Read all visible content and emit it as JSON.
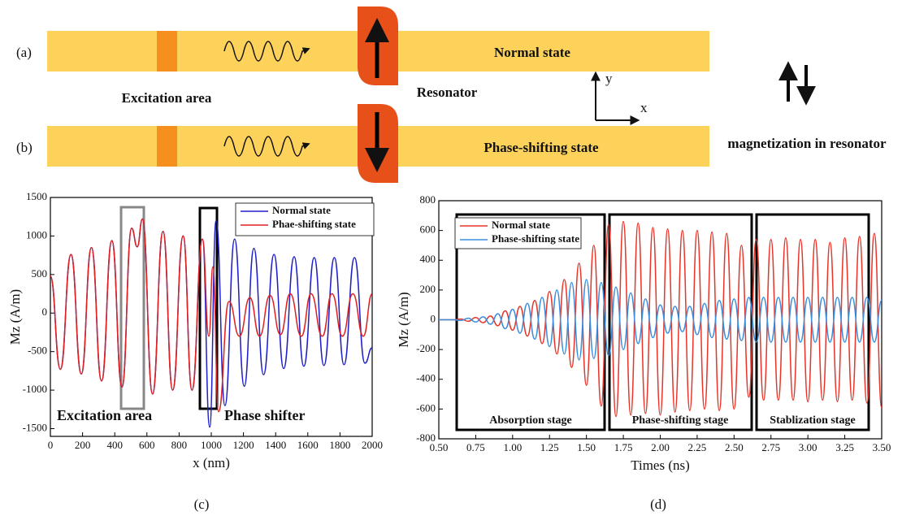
{
  "diagram": {
    "label_a": "(a)",
    "label_b": "(b)",
    "normal": "Normal state",
    "phase": "Phase-shifting state",
    "excitation": "Excitation area",
    "resonator": "Resonator",
    "axis_y": "y",
    "axis_x": "x",
    "magnetization": "magnetization in resonator"
  },
  "captions": [
    "(c)",
    "(d)"
  ],
  "chart_data": [
    {
      "type": "line",
      "x_label": "x (nm)",
      "y_label": "Mz (A/m)",
      "xlim": [
        0,
        2000
      ],
      "xticks": [
        0,
        200,
        400,
        600,
        800,
        1000,
        1200,
        1400,
        1600,
        1800,
        2000
      ],
      "ylim": [
        -1600,
        1500
      ],
      "yticks": [
        -1500,
        -1000,
        -500,
        0,
        500,
        1000,
        1500
      ],
      "legend": "upper right",
      "annotations": [
        "Excitation area",
        "Phase shifter"
      ],
      "series": [
        {
          "name": "Normal state",
          "color": "#1f1fc8",
          "x": [
            0,
            62,
            128,
            192,
            255,
            318,
            382,
            445,
            505,
            540,
            572,
            635,
            700,
            760,
            825,
            880,
            945,
            990,
            1030,
            1085,
            1145,
            1205,
            1265,
            1325,
            1390,
            1450,
            1515,
            1575,
            1640,
            1700,
            1765,
            1825,
            1890,
            1955,
            2000
          ],
          "values": [
            480,
            -730,
            760,
            -790,
            850,
            -880,
            940,
            -960,
            1100,
            860,
            1220,
            -1050,
            1060,
            -1000,
            1000,
            -1000,
            960,
            -1480,
            1200,
            -1200,
            960,
            -950,
            840,
            -800,
            760,
            -720,
            730,
            -690,
            720,
            -680,
            720,
            -670,
            720,
            -650,
            -450
          ]
        },
        {
          "name": "Phae-shifting state",
          "color": "#e02020",
          "x": [
            0,
            62,
            128,
            192,
            255,
            318,
            382,
            445,
            505,
            540,
            572,
            635,
            700,
            760,
            825,
            880,
            945,
            985,
            1010,
            1045,
            1110,
            1175,
            1240,
            1300,
            1365,
            1430,
            1490,
            1560,
            1620,
            1690,
            1750,
            1815,
            1880,
            1945,
            2000
          ],
          "values": [
            480,
            -730,
            760,
            -790,
            850,
            -880,
            940,
            -960,
            1100,
            860,
            1220,
            -1050,
            1060,
            -1000,
            1000,
            -1000,
            960,
            -300,
            600,
            -1280,
            150,
            -300,
            200,
            -300,
            230,
            -280,
            250,
            -300,
            250,
            -300,
            250,
            -300,
            250,
            -300,
            250
          ]
        }
      ]
    },
    {
      "type": "line",
      "x_label": "Times (ns)",
      "y_label": "Mz (A/m)",
      "xlim": [
        0.5,
        3.5
      ],
      "xticks": [
        {
          "value": 0.5,
          "label": "0.50"
        },
        0.75,
        {
          "value": 1,
          "label": "1.00"
        },
        1.25,
        {
          "value": 1.5,
          "label": "1.50"
        },
        1.75,
        {
          "value": 2,
          "label": "2.00"
        },
        2.25,
        {
          "value": 2.5,
          "label": "2.50"
        },
        2.75,
        {
          "value": 3,
          "label": "3.00"
        },
        3.25,
        {
          "value": 3.5,
          "label": "3.50"
        }
      ],
      "ylim": [
        -800,
        800
      ],
      "yticks": [
        -800,
        -600,
        -400,
        -200,
        0,
        200,
        400,
        600,
        800
      ],
      "legend": "upper left",
      "annotations": [
        "Absorption stage",
        "Phase-shifting stage",
        "Stablization stage"
      ],
      "x": [
        0.5,
        0.55,
        0.6,
        0.65,
        0.7,
        0.75,
        0.8,
        0.85,
        0.9,
        0.95,
        1.0,
        1.05,
        1.1,
        1.15,
        1.2,
        1.25,
        1.3,
        1.35,
        1.4,
        1.45,
        1.5,
        1.55,
        1.6,
        1.65,
        1.7,
        1.75,
        1.8,
        1.85,
        1.9,
        1.95,
        2.0,
        2.05,
        2.1,
        2.15,
        2.2,
        2.25,
        2.3,
        2.35,
        2.4,
        2.45,
        2.5,
        2.55,
        2.6,
        2.65,
        2.7,
        2.75,
        2.8,
        2.85,
        2.9,
        2.95,
        3.0,
        3.05,
        3.1,
        3.15,
        3.2,
        3.25,
        3.3,
        3.35,
        3.4,
        3.45,
        3.5
      ],
      "series": [
        {
          "name": "Normal state",
          "color": "#e8352a",
          "values": [
            0,
            0,
            0,
            5,
            -10,
            15,
            -20,
            25,
            -40,
            60,
            -70,
            90,
            -110,
            130,
            -160,
            190,
            -230,
            270,
            -320,
            380,
            -440,
            500,
            -580,
            640,
            -650,
            660,
            -640,
            650,
            -630,
            620,
            -640,
            610,
            -620,
            600,
            -610,
            600,
            -600,
            590,
            -610,
            580,
            -600,
            500,
            -520,
            540,
            -540,
            540,
            -540,
            550,
            -540,
            540,
            -550,
            540,
            -540,
            520,
            -550,
            550,
            -540,
            560,
            -560,
            580,
            -590
          ]
        },
        {
          "name": "Phase-shifting state",
          "color": "#3a8ee0",
          "values": [
            0,
            0,
            0,
            -5,
            10,
            -15,
            20,
            -30,
            40,
            -60,
            70,
            -90,
            110,
            -130,
            150,
            -180,
            200,
            -230,
            250,
            -270,
            270,
            -260,
            250,
            -240,
            220,
            -200,
            180,
            -160,
            140,
            -120,
            100,
            -90,
            90,
            -80,
            90,
            -100,
            110,
            -120,
            130,
            -130,
            140,
            -140,
            150,
            -150,
            150,
            -150,
            150,
            -150,
            150,
            -150,
            150,
            -150,
            150,
            -150,
            150,
            -150,
            150,
            -150,
            150,
            -150,
            130
          ]
        }
      ]
    }
  ]
}
